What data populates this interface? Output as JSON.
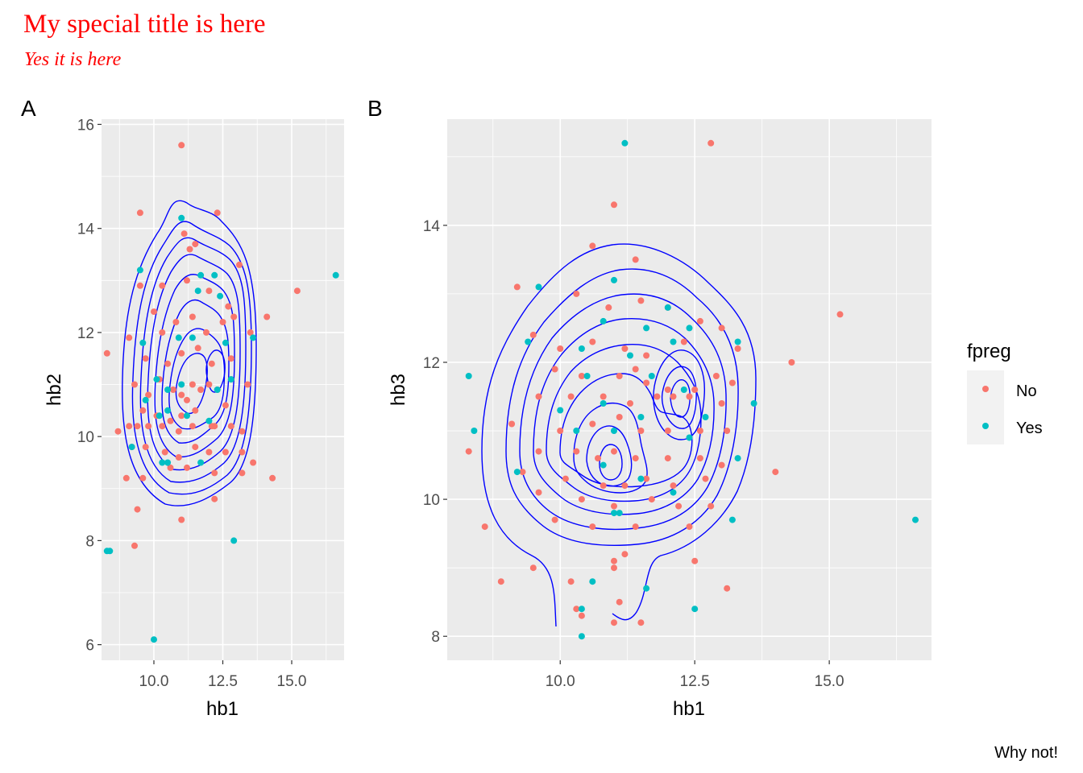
{
  "title": "My special title is here",
  "subtitle": "Yes it is here",
  "caption": "Why not!",
  "title_color": "#FF0000",
  "legend": {
    "title": "fpreg",
    "items": [
      {
        "label": "No",
        "color": "#F8766D"
      },
      {
        "label": "Yes",
        "color": "#00BFC4"
      }
    ]
  },
  "contour_color": "#0000FF",
  "chart_data": [
    {
      "type": "scatter",
      "tag": "A",
      "xlabel": "hb1",
      "ylabel": "hb2",
      "xlim": [
        8.1,
        16.9
      ],
      "ylim": [
        5.7,
        16.1
      ],
      "xticks": [
        10.0,
        12.5,
        15.0
      ],
      "xtick_labels": [
        "10.0",
        "12.5",
        "15.0"
      ],
      "yticks": [
        6,
        8,
        10,
        12,
        14,
        16
      ],
      "ytick_labels": [
        "6",
        "8",
        "10",
        "12",
        "14",
        "16"
      ],
      "grid": true,
      "overlay": "2d density contours",
      "series": [
        {
          "name": "No",
          "color": "#F8766D",
          "points": [
            [
              11.0,
              15.6
            ],
            [
              12.3,
              14.3
            ],
            [
              9.5,
              14.3
            ],
            [
              11.1,
              13.9
            ],
            [
              11.3,
              13.6
            ],
            [
              11.5,
              13.7
            ],
            [
              13.1,
              13.3
            ],
            [
              9.5,
              12.9
            ],
            [
              10.3,
              12.9
            ],
            [
              11.2,
              13.0
            ],
            [
              12.0,
              12.8
            ],
            [
              12.7,
              12.5
            ],
            [
              15.2,
              12.8
            ],
            [
              14.1,
              12.3
            ],
            [
              10.0,
              12.4
            ],
            [
              10.3,
              12.0
            ],
            [
              10.8,
              12.2
            ],
            [
              11.4,
              12.3
            ],
            [
              11.9,
              12.0
            ],
            [
              12.5,
              12.2
            ],
            [
              12.9,
              12.3
            ],
            [
              13.5,
              12.0
            ],
            [
              8.3,
              11.6
            ],
            [
              9.1,
              11.9
            ],
            [
              9.7,
              11.5
            ],
            [
              10.5,
              11.4
            ],
            [
              11.0,
              11.6
            ],
            [
              11.6,
              11.7
            ],
            [
              12.1,
              11.4
            ],
            [
              12.8,
              11.5
            ],
            [
              9.3,
              11.0
            ],
            [
              9.8,
              10.8
            ],
            [
              10.2,
              11.1
            ],
            [
              10.7,
              10.9
            ],
            [
              11.0,
              10.8
            ],
            [
              11.2,
              10.7
            ],
            [
              11.4,
              11.0
            ],
            [
              11.7,
              10.9
            ],
            [
              12.0,
              11.0
            ],
            [
              12.3,
              10.9
            ],
            [
              12.8,
              11.1
            ],
            [
              13.4,
              11.0
            ],
            [
              9.6,
              10.5
            ],
            [
              10.1,
              10.4
            ],
            [
              10.6,
              10.3
            ],
            [
              11.0,
              10.4
            ],
            [
              11.5,
              10.5
            ],
            [
              12.1,
              10.2
            ],
            [
              12.6,
              10.6
            ],
            [
              8.7,
              10.1
            ],
            [
              9.1,
              10.2
            ],
            [
              9.4,
              10.2
            ],
            [
              9.8,
              10.2
            ],
            [
              10.3,
              10.2
            ],
            [
              10.9,
              10.1
            ],
            [
              11.4,
              10.2
            ],
            [
              12.2,
              10.2
            ],
            [
              12.8,
              10.2
            ],
            [
              13.2,
              10.1
            ],
            [
              9.2,
              9.8
            ],
            [
              9.7,
              9.8
            ],
            [
              10.4,
              9.7
            ],
            [
              10.9,
              9.6
            ],
            [
              11.5,
              9.8
            ],
            [
              12.0,
              9.7
            ],
            [
              12.6,
              9.7
            ],
            [
              13.2,
              9.7
            ],
            [
              13.6,
              9.5
            ],
            [
              9.0,
              9.2
            ],
            [
              9.6,
              9.2
            ],
            [
              10.6,
              9.4
            ],
            [
              11.2,
              9.4
            ],
            [
              12.2,
              9.3
            ],
            [
              13.2,
              9.3
            ],
            [
              14.3,
              9.2
            ],
            [
              9.4,
              8.6
            ],
            [
              11.0,
              8.4
            ],
            [
              12.2,
              8.8
            ],
            [
              9.3,
              7.9
            ]
          ]
        },
        {
          "name": "Yes",
          "color": "#00BFC4",
          "points": [
            [
              11.0,
              14.2
            ],
            [
              9.5,
              13.2
            ],
            [
              11.7,
              13.1
            ],
            [
              12.2,
              13.1
            ],
            [
              11.6,
              12.8
            ],
            [
              12.4,
              12.7
            ],
            [
              16.6,
              13.1
            ],
            [
              9.6,
              11.8
            ],
            [
              10.9,
              11.9
            ],
            [
              11.4,
              11.9
            ],
            [
              12.6,
              11.8
            ],
            [
              13.6,
              11.9
            ],
            [
              10.1,
              11.1
            ],
            [
              10.5,
              10.9
            ],
            [
              11.0,
              11.0
            ],
            [
              12.3,
              10.9
            ],
            [
              12.8,
              11.1
            ],
            [
              9.7,
              10.7
            ],
            [
              10.2,
              10.4
            ],
            [
              10.5,
              10.5
            ],
            [
              11.2,
              10.4
            ],
            [
              12.0,
              10.3
            ],
            [
              9.2,
              9.8
            ],
            [
              10.3,
              9.5
            ],
            [
              10.5,
              9.5
            ],
            [
              11.7,
              9.5
            ],
            [
              8.3,
              7.8
            ],
            [
              8.4,
              7.8
            ],
            [
              12.9,
              8.0
            ],
            [
              10.0,
              6.1
            ]
          ]
        }
      ]
    },
    {
      "type": "scatter",
      "tag": "B",
      "xlabel": "hb1",
      "ylabel": "hb3",
      "xlim": [
        7.9,
        16.9
      ],
      "ylim": [
        7.65,
        15.55
      ],
      "xticks": [
        10.0,
        12.5,
        15.0
      ],
      "xtick_labels": [
        "10.0",
        "12.5",
        "15.0"
      ],
      "yticks": [
        8,
        10,
        12,
        14
      ],
      "ytick_labels": [
        "8",
        "10",
        "12",
        "14"
      ],
      "grid": true,
      "overlay": "2d density contours",
      "series": [
        {
          "name": "No",
          "color": "#F8766D",
          "points": [
            [
              11.0,
              14.3
            ],
            [
              12.8,
              15.2
            ],
            [
              10.6,
              13.7
            ],
            [
              11.4,
              13.5
            ],
            [
              9.2,
              13.1
            ],
            [
              10.3,
              13.0
            ],
            [
              10.9,
              12.8
            ],
            [
              11.5,
              12.9
            ],
            [
              12.0,
              12.8
            ],
            [
              12.6,
              12.6
            ],
            [
              13.0,
              12.5
            ],
            [
              15.2,
              12.7
            ],
            [
              9.5,
              12.4
            ],
            [
              10.0,
              12.2
            ],
            [
              10.6,
              12.3
            ],
            [
              11.2,
              12.2
            ],
            [
              11.6,
              12.1
            ],
            [
              12.3,
              12.3
            ],
            [
              13.3,
              12.2
            ],
            [
              14.3,
              12.0
            ],
            [
              9.9,
              11.9
            ],
            [
              10.4,
              11.8
            ],
            [
              11.1,
              11.8
            ],
            [
              11.4,
              11.9
            ],
            [
              11.6,
              11.7
            ],
            [
              12.0,
              11.6
            ],
            [
              12.5,
              11.6
            ],
            [
              12.9,
              11.8
            ],
            [
              13.2,
              11.7
            ],
            [
              9.6,
              11.5
            ],
            [
              10.2,
              11.5
            ],
            [
              10.8,
              11.5
            ],
            [
              11.3,
              11.4
            ],
            [
              11.8,
              11.5
            ],
            [
              12.1,
              11.5
            ],
            [
              12.4,
              11.5
            ],
            [
              13.0,
              11.4
            ],
            [
              9.1,
              11.1
            ],
            [
              10.0,
              11.0
            ],
            [
              10.6,
              11.1
            ],
            [
              11.1,
              11.2
            ],
            [
              11.5,
              11.0
            ],
            [
              12.0,
              11.0
            ],
            [
              12.6,
              11.0
            ],
            [
              13.1,
              11.0
            ],
            [
              8.3,
              10.7
            ],
            [
              9.6,
              10.7
            ],
            [
              10.3,
              10.7
            ],
            [
              10.7,
              10.6
            ],
            [
              11.0,
              10.7
            ],
            [
              11.4,
              10.6
            ],
            [
              12.0,
              10.6
            ],
            [
              12.6,
              10.6
            ],
            [
              13.0,
              10.5
            ],
            [
              9.3,
              10.4
            ],
            [
              10.1,
              10.3
            ],
            [
              10.8,
              10.2
            ],
            [
              11.2,
              10.2
            ],
            [
              11.6,
              10.3
            ],
            [
              12.1,
              10.2
            ],
            [
              12.7,
              10.3
            ],
            [
              14.0,
              10.4
            ],
            [
              9.6,
              10.1
            ],
            [
              10.4,
              10.0
            ],
            [
              11.0,
              9.9
            ],
            [
              11.7,
              10.0
            ],
            [
              12.2,
              9.9
            ],
            [
              12.8,
              9.9
            ],
            [
              9.9,
              9.7
            ],
            [
              10.6,
              9.6
            ],
            [
              11.4,
              9.6
            ],
            [
              12.4,
              9.6
            ],
            [
              8.6,
              9.6
            ],
            [
              11.0,
              9.1
            ],
            [
              11.2,
              9.2
            ],
            [
              12.5,
              9.1
            ],
            [
              8.9,
              8.8
            ],
            [
              9.5,
              9.0
            ],
            [
              10.2,
              8.8
            ],
            [
              11.0,
              9.0
            ],
            [
              13.1,
              8.7
            ],
            [
              10.3,
              8.4
            ],
            [
              11.1,
              8.5
            ],
            [
              10.4,
              8.3
            ],
            [
              11.0,
              8.2
            ],
            [
              11.5,
              8.2
            ]
          ]
        },
        {
          "name": "Yes",
          "color": "#00BFC4",
          "points": [
            [
              11.2,
              15.2
            ],
            [
              9.6,
              13.1
            ],
            [
              11.0,
              13.2
            ],
            [
              10.8,
              12.6
            ],
            [
              11.6,
              12.5
            ],
            [
              12.0,
              12.8
            ],
            [
              12.4,
              12.5
            ],
            [
              9.4,
              12.3
            ],
            [
              10.4,
              12.2
            ],
            [
              11.3,
              12.1
            ],
            [
              12.1,
              12.3
            ],
            [
              13.3,
              12.3
            ],
            [
              8.3,
              11.8
            ],
            [
              10.5,
              11.8
            ],
            [
              11.7,
              11.8
            ],
            [
              12.3,
              11.6
            ],
            [
              13.6,
              11.4
            ],
            [
              10.0,
              11.3
            ],
            [
              10.8,
              11.4
            ],
            [
              11.5,
              11.2
            ],
            [
              12.7,
              11.2
            ],
            [
              8.4,
              11.0
            ],
            [
              10.3,
              11.0
            ],
            [
              11.0,
              11.0
            ],
            [
              12.4,
              10.9
            ],
            [
              13.3,
              10.6
            ],
            [
              9.2,
              10.4
            ],
            [
              10.8,
              10.5
            ],
            [
              11.5,
              10.3
            ],
            [
              12.1,
              10.1
            ],
            [
              11.0,
              9.8
            ],
            [
              11.1,
              9.8
            ],
            [
              13.2,
              9.7
            ],
            [
              16.6,
              9.7
            ],
            [
              10.6,
              8.8
            ],
            [
              11.6,
              8.7
            ],
            [
              12.5,
              8.4
            ],
            [
              10.4,
              8.4
            ],
            [
              10.4,
              8.0
            ]
          ]
        }
      ]
    }
  ]
}
